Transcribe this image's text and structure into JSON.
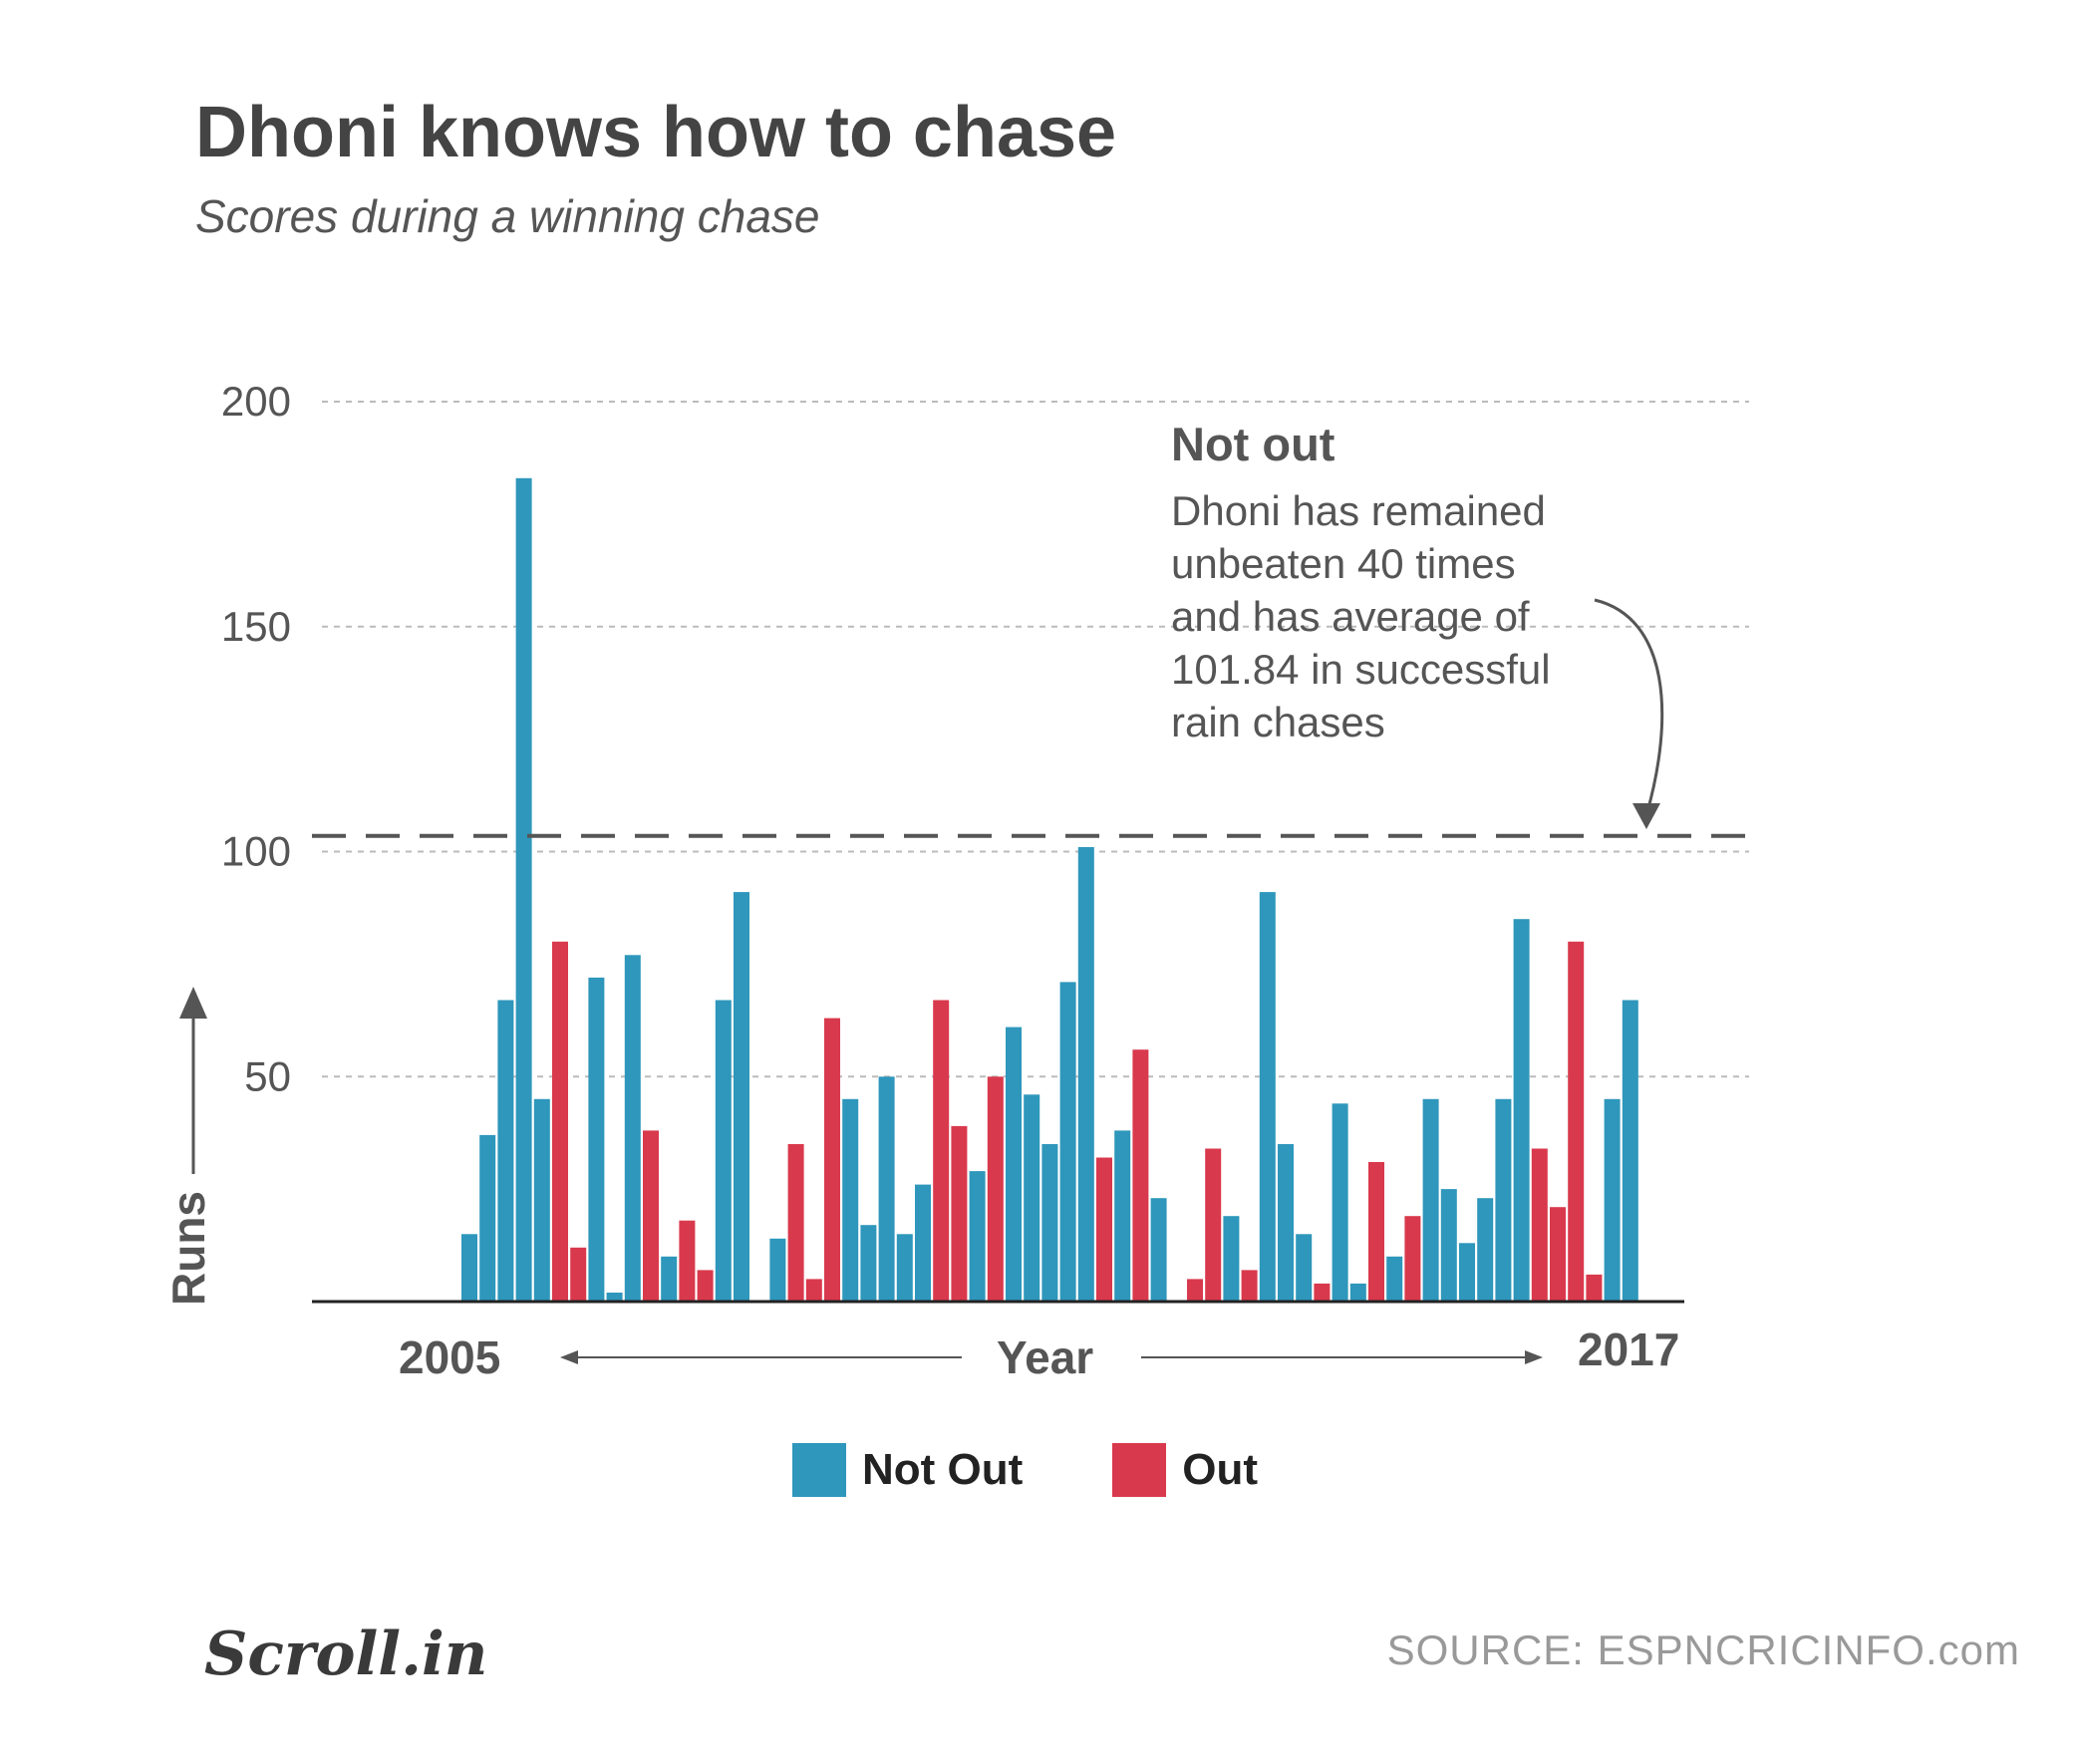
{
  "title": "Dhoni knows how to chase",
  "subtitle": "Scores during a winning chase",
  "chart_data": {
    "type": "bar",
    "ylabel": "Runs",
    "xlabel": "Year",
    "x_start_label": "2005",
    "x_end_label": "2017",
    "ylim": [
      0,
      200
    ],
    "yticks": [
      50,
      100,
      150,
      200
    ],
    "grid": true,
    "series": [
      {
        "name": "Not Out",
        "color": "#2e97bb"
      },
      {
        "name": "Out",
        "color": "#d9394c"
      }
    ],
    "bars": [
      {
        "v": 15,
        "s": "Not Out"
      },
      {
        "v": 37,
        "s": "Not Out"
      },
      {
        "v": 67,
        "s": "Not Out"
      },
      {
        "v": 183,
        "s": "Not Out"
      },
      {
        "v": 45,
        "s": "Not Out"
      },
      {
        "v": 80,
        "s": "Out"
      },
      {
        "v": 12,
        "s": "Out"
      },
      {
        "v": 72,
        "s": "Not Out"
      },
      {
        "v": 2,
        "s": "Not Out"
      },
      {
        "v": 77,
        "s": "Not Out"
      },
      {
        "v": 38,
        "s": "Out"
      },
      {
        "v": 10,
        "s": "Not Out"
      },
      {
        "v": 18,
        "s": "Out"
      },
      {
        "v": 7,
        "s": "Out"
      },
      {
        "v": 67,
        "s": "Not Out"
      },
      {
        "v": 91,
        "s": "Not Out"
      },
      {
        "v": null,
        "s": "gap"
      },
      {
        "v": 14,
        "s": "Not Out"
      },
      {
        "v": 35,
        "s": "Out"
      },
      {
        "v": 5,
        "s": "Out"
      },
      {
        "v": 63,
        "s": "Out"
      },
      {
        "v": 45,
        "s": "Not Out"
      },
      {
        "v": 17,
        "s": "Not Out"
      },
      {
        "v": 50,
        "s": "Not Out"
      },
      {
        "v": 15,
        "s": "Not Out"
      },
      {
        "v": 26,
        "s": "Not Out"
      },
      {
        "v": 67,
        "s": "Out"
      },
      {
        "v": 39,
        "s": "Out"
      },
      {
        "v": 29,
        "s": "Not Out"
      },
      {
        "v": 50,
        "s": "Out"
      },
      {
        "v": 61,
        "s": "Not Out"
      },
      {
        "v": 46,
        "s": "Not Out"
      },
      {
        "v": 35,
        "s": "Not Out"
      },
      {
        "v": 71,
        "s": "Not Out"
      },
      {
        "v": 101,
        "s": "Not Out"
      },
      {
        "v": 32,
        "s": "Out"
      },
      {
        "v": 38,
        "s": "Not Out"
      },
      {
        "v": 56,
        "s": "Out"
      },
      {
        "v": 23,
        "s": "Not Out"
      },
      {
        "v": null,
        "s": "gap"
      },
      {
        "v": 5,
        "s": "Out"
      },
      {
        "v": 34,
        "s": "Out"
      },
      {
        "v": 19,
        "s": "Not Out"
      },
      {
        "v": 7,
        "s": "Out"
      },
      {
        "v": 91,
        "s": "Not Out"
      },
      {
        "v": 35,
        "s": "Not Out"
      },
      {
        "v": 15,
        "s": "Not Out"
      },
      {
        "v": 4,
        "s": "Out"
      },
      {
        "v": 44,
        "s": "Not Out"
      },
      {
        "v": 4,
        "s": "Not Out"
      },
      {
        "v": 31,
        "s": "Out"
      },
      {
        "v": 10,
        "s": "Not Out"
      },
      {
        "v": 19,
        "s": "Out"
      },
      {
        "v": 45,
        "s": "Not Out"
      },
      {
        "v": 25,
        "s": "Not Out"
      },
      {
        "v": 13,
        "s": "Not Out"
      },
      {
        "v": 23,
        "s": "Not Out"
      },
      {
        "v": 45,
        "s": "Not Out"
      },
      {
        "v": 85,
        "s": "Not Out"
      },
      {
        "v": 34,
        "s": "Out"
      },
      {
        "v": 21,
        "s": "Out"
      },
      {
        "v": 80,
        "s": "Out"
      },
      {
        "v": 6,
        "s": "Out"
      },
      {
        "v": 45,
        "s": "Not Out"
      },
      {
        "v": 67,
        "s": "Not Out"
      }
    ],
    "reference_line": {
      "value": 103.5,
      "style": "dashed"
    },
    "annotation": {
      "title": "Not out",
      "lines": [
        "Dhoni has remained",
        "unbeaten 40 times",
        "and has average of",
        "101.84 in successful",
        "rain chases"
      ]
    }
  },
  "legend": {
    "not_out_label": "Not Out",
    "out_label": "Out",
    "not_out_color": "#2e97bb",
    "out_color": "#d9394c"
  },
  "footer": {
    "logo": "Scroll.in",
    "source": "SOURCE: ESPNCRICINFO.com"
  }
}
